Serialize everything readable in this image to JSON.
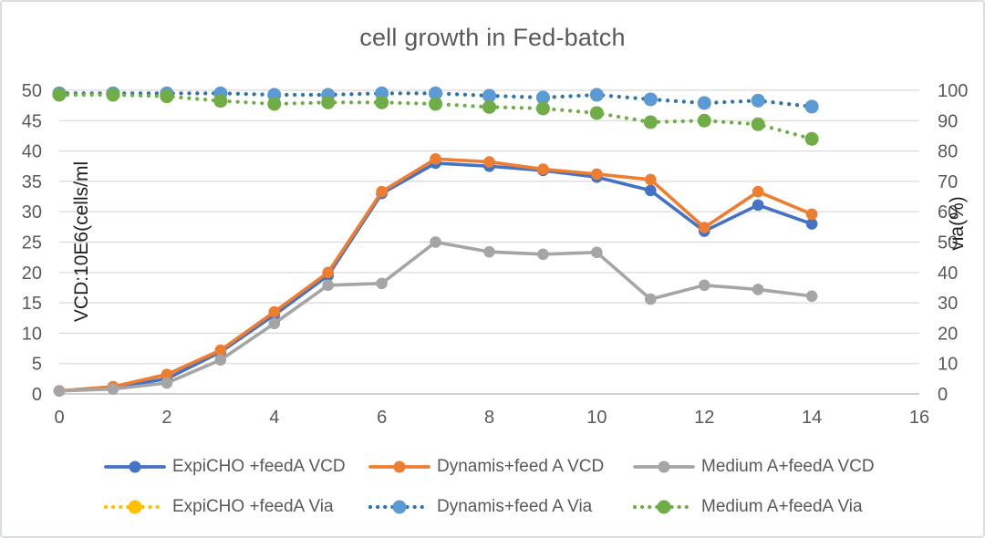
{
  "window": {
    "background": "#ffffff",
    "border_color": "#dadde1"
  },
  "chart_data": {
    "type": "line",
    "title": "cell growth in Fed-batch",
    "ylabel_left": "VCD:10E6(cells/ml",
    "ylabel_right": "via(%)",
    "xlabel": "",
    "x": [
      0,
      1,
      2,
      3,
      4,
      5,
      6,
      7,
      8,
      9,
      10,
      11,
      12,
      13,
      14
    ],
    "x_axis": {
      "min": 0,
      "max": 16,
      "step": 2
    },
    "y_axis_left": {
      "min": 0,
      "max": 50,
      "step": 5
    },
    "y_axis_right": {
      "min": 0,
      "max": 100,
      "step": 10
    },
    "grid": true,
    "legend_position": "bottom",
    "colors": {
      "grid": "#d9d9d9",
      "axis_line": "#bfbfbf",
      "tick_text": "#595959",
      "title_text": "#595959",
      "axis_title_text": "#1f1f1f"
    },
    "series": [
      {
        "name": "ExpiCHO +feedA VCD",
        "axis": "left",
        "style": "solid",
        "color": "#4472C4",
        "values": [
          0.5,
          1.0,
          2.5,
          6.9,
          13.0,
          19.5,
          33.0,
          38.0,
          37.5,
          36.8,
          35.7,
          33.5,
          26.8,
          31.1,
          28.0
        ]
      },
      {
        "name": "Dynamis+feed A VCD",
        "axis": "left",
        "style": "solid",
        "color": "#ED7D31",
        "values": [
          0.5,
          1.2,
          3.2,
          7.2,
          13.5,
          20.0,
          33.3,
          38.7,
          38.2,
          37.0,
          36.2,
          35.3,
          27.4,
          33.3,
          29.6
        ]
      },
      {
        "name": "Medium A+feedA VCD",
        "axis": "left",
        "style": "solid",
        "color": "#A5A5A5",
        "values": [
          0.5,
          0.8,
          1.8,
          5.6,
          11.6,
          17.9,
          18.2,
          25.0,
          23.4,
          23.0,
          23.3,
          15.6,
          17.9,
          17.2,
          16.1
        ]
      },
      {
        "name": "ExpiCHO +feedA Via",
        "axis": "right",
        "style": "dotted",
        "color": "#FFC000",
        "values": [
          99,
          99,
          99,
          99,
          98.5,
          98.5,
          99,
          99,
          98.2,
          97.6,
          98.5,
          97,
          95.8,
          96.6,
          94.6
        ]
      },
      {
        "name": "Dynamis+feed A Via",
        "axis": "right",
        "style": "dotted",
        "color": "#2E75B6",
        "marker_color": "#5B9BD5",
        "values": [
          99,
          99,
          99,
          99,
          98.5,
          98.5,
          99,
          99,
          98.2,
          97.6,
          98.5,
          97,
          95.8,
          96.6,
          94.6
        ]
      },
      {
        "name": "Medium A+feedA Via",
        "axis": "right",
        "style": "dotted",
        "color": "#70AD47",
        "values": [
          98.5,
          98.5,
          98,
          96.5,
          95.5,
          96,
          96,
          95.5,
          94.5,
          94,
          92.5,
          89.5,
          90,
          88.8,
          84
        ]
      }
    ]
  }
}
